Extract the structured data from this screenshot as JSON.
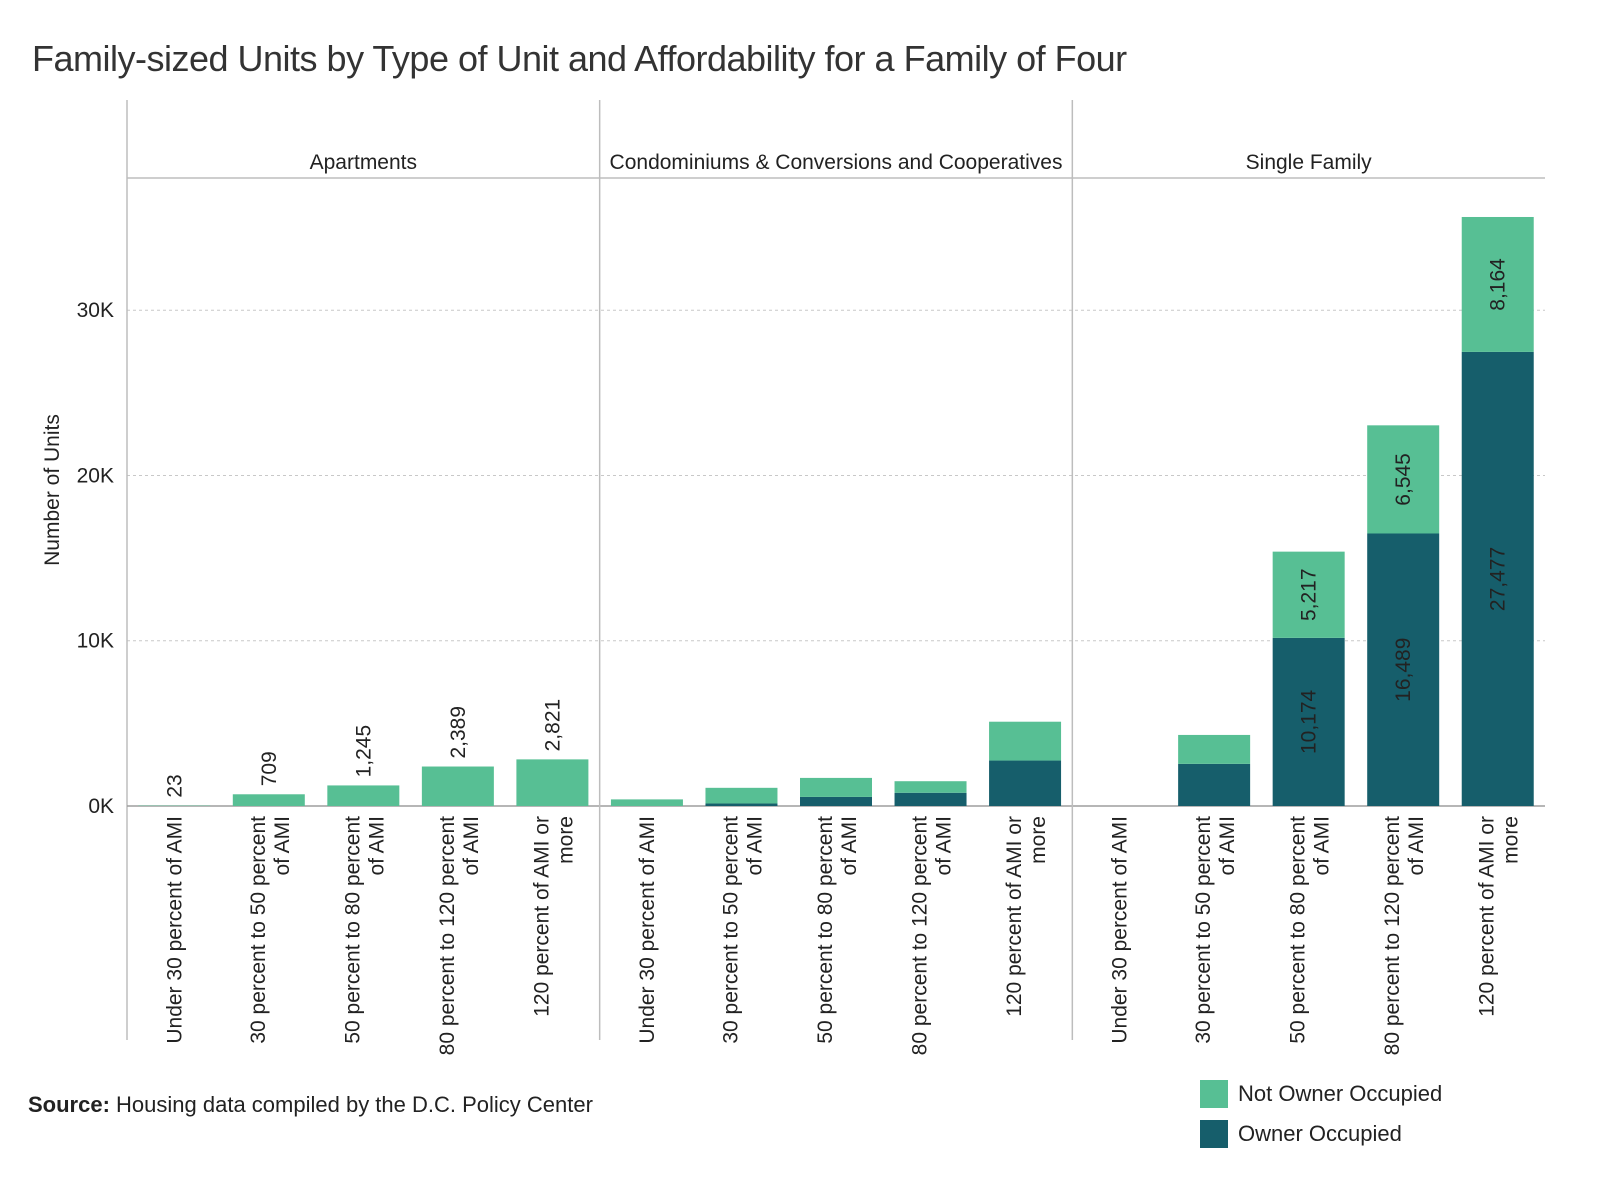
{
  "chart_data": {
    "type": "bar",
    "stacked": true,
    "title": "Family-sized Units by Type of Unit and Affordability for a Family of Four",
    "ylabel": "Number of Units",
    "ylim": [
      0,
      38000
    ],
    "yticks": [
      0,
      10000,
      20000,
      30000
    ],
    "ytick_labels": [
      "0K",
      "10K",
      "20K",
      "30K"
    ],
    "grid": true,
    "legend_position": "bottom-right",
    "categories": [
      "Under 30 percent of AMI",
      "30 percent to 50 percent of AMI",
      "50 percent to 80 percent of AMI",
      "80 percent to 120 percent of AMI",
      "120 percent of AMI or more"
    ],
    "category_label_lines": [
      [
        "Under 30 percent of AMI"
      ],
      [
        "30 percent to 50 percent",
        "of AMI"
      ],
      [
        "50 percent to 80 percent",
        "of AMI"
      ],
      [
        "80 percent to 120 percent",
        "of AMI"
      ],
      [
        "120 percent of AMI or",
        "more"
      ]
    ],
    "series": [
      {
        "name": "Owner Occupied",
        "color": "#165E6B"
      },
      {
        "name": "Not Owner Occupied",
        "color": "#57BF94"
      }
    ],
    "panels": [
      {
        "name": "Apartments",
        "owner": [
          0,
          0,
          0,
          0,
          0
        ],
        "not_owner": [
          23,
          709,
          1245,
          2389,
          2821
        ],
        "owner_labels": [
          "",
          "",
          "",
          "",
          ""
        ],
        "not_owner_labels": [
          "23",
          "709",
          "1,245",
          "2,389",
          "2,821"
        ],
        "label_mode": "above"
      },
      {
        "name": "Condominiums & Conversions and Cooperatives",
        "owner": [
          0,
          150,
          550,
          800,
          2750
        ],
        "not_owner": [
          400,
          950,
          1150,
          700,
          2350
        ],
        "owner_labels": [
          "",
          "",
          "",
          "",
          ""
        ],
        "not_owner_labels": [
          "",
          "",
          "",
          "",
          ""
        ],
        "label_mode": "inside"
      },
      {
        "name": "Single Family",
        "owner": [
          0,
          2550,
          10174,
          16489,
          27477
        ],
        "not_owner": [
          0,
          1750,
          5217,
          6545,
          8164
        ],
        "owner_labels": [
          "",
          "",
          "10,174",
          "16,489",
          "27,477"
        ],
        "not_owner_labels": [
          "",
          "",
          "5,217",
          "6,545",
          "8,164"
        ],
        "label_mode": "inside"
      }
    ]
  },
  "source": {
    "prefix": "Source:",
    "text": "Housing data compiled by the D.C. Policy Center"
  },
  "legend": {
    "items": [
      {
        "label": "Not Owner Occupied",
        "color": "#57BF94"
      },
      {
        "label": "Owner Occupied",
        "color": "#165E6B"
      }
    ]
  }
}
